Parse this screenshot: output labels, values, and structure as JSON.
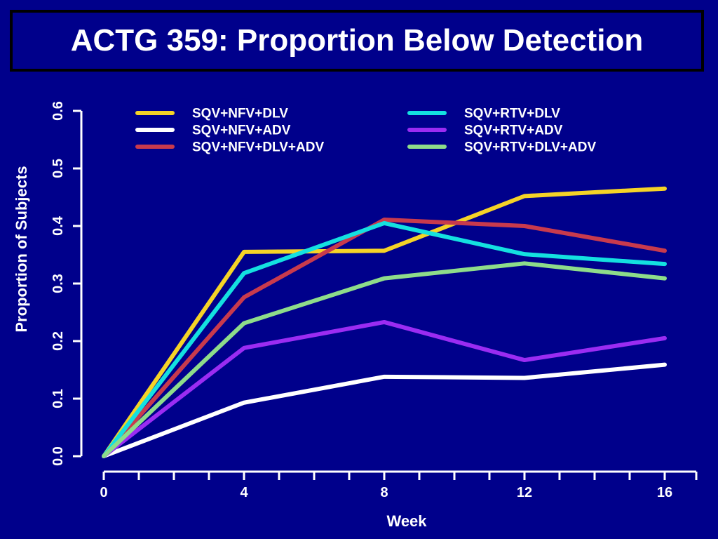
{
  "slide": {
    "title": "ACTG 359: Proportion Below Detection",
    "background": "#00008b",
    "title_border_color": "#000000"
  },
  "chart_data": {
    "type": "line",
    "xlabel": "Week",
    "ylabel": "Proportion of Subjects",
    "x": [
      0,
      4,
      8,
      12,
      16
    ],
    "xlim": [
      0,
      16.9
    ],
    "ylim": [
      0,
      0.6
    ],
    "x_ticks": [
      0,
      4,
      8,
      12,
      16
    ],
    "x_minor_ticks": [
      1,
      2,
      3,
      5,
      6,
      7,
      9,
      10,
      11,
      13,
      14,
      15,
      16.9
    ],
    "y_ticks": [
      0.0,
      0.1,
      0.2,
      0.3,
      0.4,
      0.5,
      0.6
    ],
    "y_tick_labels": [
      "0.0",
      "0.1",
      "0.2",
      "0.3",
      "0.4",
      "0.5",
      "0.6"
    ],
    "grid": false,
    "legend_position": "top",
    "series": [
      {
        "name": "SQV+NFV+DLV",
        "color": "#f5d327",
        "values": [
          0.0,
          0.355,
          0.357,
          0.452,
          0.465
        ]
      },
      {
        "name": "SQV+NFV+ADV",
        "color": "#ffffff",
        "values": [
          0.0,
          0.093,
          0.138,
          0.136,
          0.159
        ]
      },
      {
        "name": "SQV+NFV+DLV+ADV",
        "color": "#c83a4d",
        "values": [
          0.0,
          0.276,
          0.411,
          0.4,
          0.357
        ]
      },
      {
        "name": "SQV+RTV+DLV",
        "color": "#14e0e0",
        "values": [
          0.0,
          0.318,
          0.405,
          0.351,
          0.334
        ]
      },
      {
        "name": "SQV+RTV+ADV",
        "color": "#9b2cf2",
        "values": [
          0.0,
          0.188,
          0.233,
          0.167,
          0.205
        ]
      },
      {
        "name": "SQV+RTV+DLV+ADV",
        "color": "#8edc8a",
        "values": [
          0.0,
          0.231,
          0.309,
          0.335,
          0.309
        ]
      }
    ]
  }
}
